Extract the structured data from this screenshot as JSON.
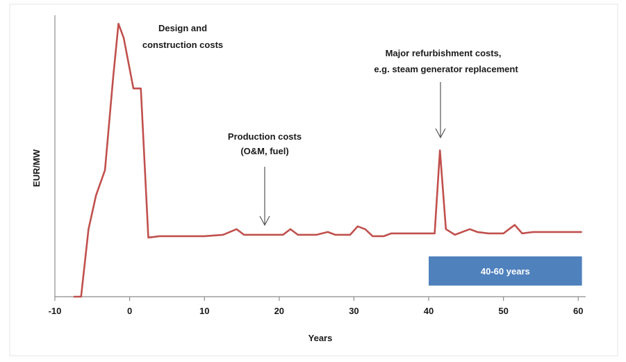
{
  "chart_data": {
    "type": "line",
    "title": "",
    "xlabel": "Years",
    "ylabel": "EUR/MW",
    "xlim": [
      -10,
      61
    ],
    "ylim": [
      0,
      100
    ],
    "x_ticks": [
      -10,
      0,
      10,
      20,
      30,
      40,
      50,
      60
    ],
    "y_ticks": [],
    "grid": false,
    "legend": "none",
    "series": [
      {
        "color": "#c0504d",
        "points": [
          [
            -7.5,
            0
          ],
          [
            -6.5,
            0
          ],
          [
            -5.5,
            24
          ],
          [
            -4.5,
            36
          ],
          [
            -3.3,
            45
          ],
          [
            -2.2,
            78
          ],
          [
            -1.5,
            97
          ],
          [
            -0.8,
            92
          ],
          [
            0.5,
            74
          ],
          [
            1.5,
            74
          ],
          [
            2.5,
            21
          ],
          [
            4,
            21.5
          ],
          [
            6,
            21.5
          ],
          [
            8,
            21.5
          ],
          [
            10,
            21.5
          ],
          [
            12.5,
            22
          ],
          [
            14.3,
            24
          ],
          [
            15.3,
            22
          ],
          [
            17,
            22
          ],
          [
            19,
            22
          ],
          [
            20.5,
            22
          ],
          [
            21.5,
            24
          ],
          [
            22.5,
            22
          ],
          [
            25,
            22
          ],
          [
            26.5,
            23
          ],
          [
            27.5,
            22
          ],
          [
            29.5,
            22
          ],
          [
            30.5,
            25
          ],
          [
            31.5,
            24
          ],
          [
            32.5,
            21.5
          ],
          [
            34,
            21.5
          ],
          [
            35,
            22.5
          ],
          [
            37,
            22.5
          ],
          [
            39,
            22.5
          ],
          [
            40.8,
            22.5
          ],
          [
            41.5,
            52
          ],
          [
            42.3,
            24
          ],
          [
            43.5,
            22
          ],
          [
            45.5,
            24
          ],
          [
            46.5,
            23
          ],
          [
            48,
            22.5
          ],
          [
            50,
            22.5
          ],
          [
            51.5,
            25.5
          ],
          [
            52.5,
            22.5
          ],
          [
            54,
            23
          ],
          [
            57,
            23
          ],
          [
            60.5,
            23
          ]
        ]
      }
    ],
    "annotations": [
      {
        "id": "design",
        "lines": [
          "Design and",
          "construction costs"
        ]
      },
      {
        "id": "production",
        "lines": [
          "Production costs",
          "(O&M, fuel)"
        ],
        "arrow_to": [
          18,
          24
        ]
      },
      {
        "id": "refurbishment",
        "lines": [
          "Major refurbishment costs,",
          "e.g. steam generator replacement"
        ],
        "arrow_to": [
          41.5,
          54
        ]
      }
    ],
    "band": {
      "label": "40-60 years",
      "x_range": [
        40,
        60.5
      ],
      "color": "#4f81bd"
    }
  }
}
